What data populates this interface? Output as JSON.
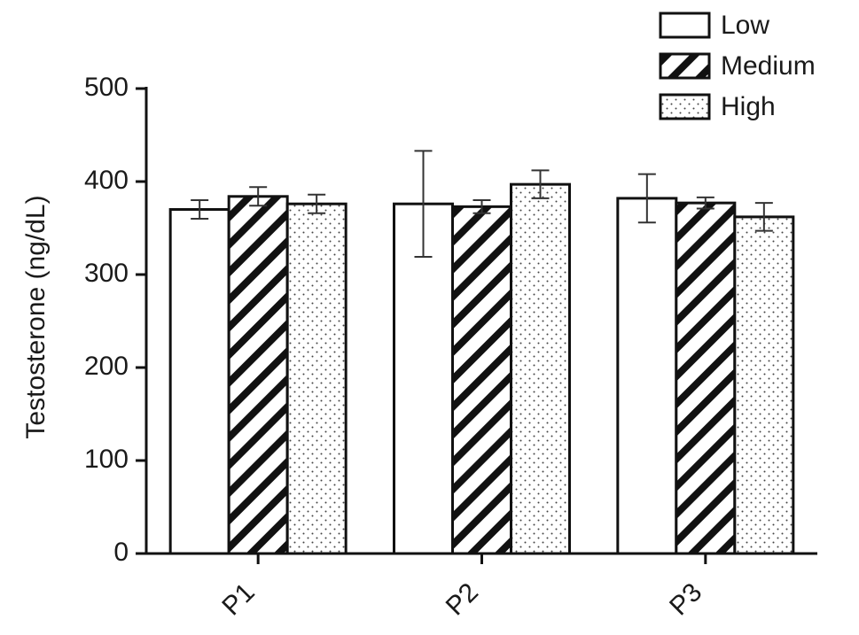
{
  "chart_data": {
    "type": "bar",
    "y_label": "Testosterone (ng/dL)",
    "categories": [
      "P1",
      "P2",
      "P3"
    ],
    "series": [
      {
        "name": "Low",
        "color": "#ffffff",
        "pattern": "none",
        "values": [
          370,
          376,
          382
        ],
        "errors": [
          10,
          57,
          26
        ]
      },
      {
        "name": "Medium",
        "color": "#ffffff",
        "pattern": "hatch",
        "values": [
          384,
          373,
          377
        ],
        "errors": [
          10,
          7,
          6
        ]
      },
      {
        "name": "High",
        "color": "#ffffff",
        "pattern": "dots",
        "values": [
          376,
          397,
          362
        ],
        "errors": [
          10,
          15,
          15
        ]
      }
    ],
    "ylim": [
      0,
      500
    ],
    "yticks": [
      0,
      100,
      200,
      300,
      400,
      500
    ],
    "grid": false,
    "legend": "upper right"
  }
}
